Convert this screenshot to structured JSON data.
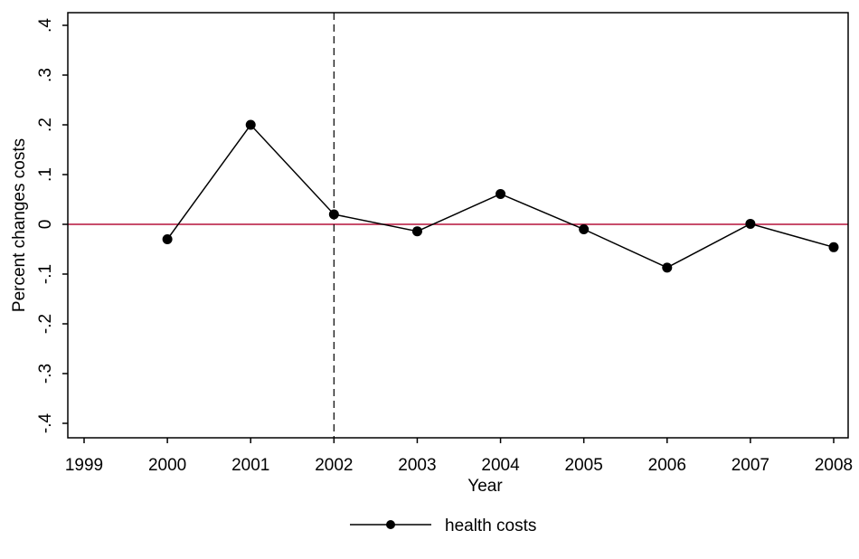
{
  "chart_data": {
    "type": "line",
    "title": "",
    "xlabel": "Year",
    "ylabel": "Percent changes costs",
    "x_ticks": [
      1999,
      2000,
      2001,
      2002,
      2003,
      2004,
      2005,
      2006,
      2007,
      2008
    ],
    "y_ticks": [
      -0.4,
      -0.3,
      -0.2,
      -0.1,
      0,
      0.1,
      0.2,
      0.3,
      0.4
    ],
    "y_tick_labels": [
      "-.4",
      "-.3",
      "-.2",
      "-.1",
      "0",
      ".1",
      ".2",
      ".3",
      ".4"
    ],
    "xlim": [
      1999,
      2008
    ],
    "ylim": [
      -0.43,
      0.43
    ],
    "grid": false,
    "legend_position": "bottom",
    "series": [
      {
        "name": "health costs",
        "x": [
          2000,
          2001,
          2002,
          2003,
          2004,
          2005,
          2006,
          2007,
          2008
        ],
        "values": [
          -0.03,
          0.2,
          0.02,
          -0.014,
          0.061,
          -0.01,
          -0.087,
          0.001,
          -0.046
        ],
        "color": "#000000",
        "marker": "circle"
      }
    ],
    "reference_lines": [
      {
        "orientation": "horizontal",
        "value": 0,
        "color": "#b5123a",
        "style": "solid"
      },
      {
        "orientation": "vertical",
        "value": 2002,
        "color": "#000000",
        "style": "dashed"
      }
    ]
  }
}
